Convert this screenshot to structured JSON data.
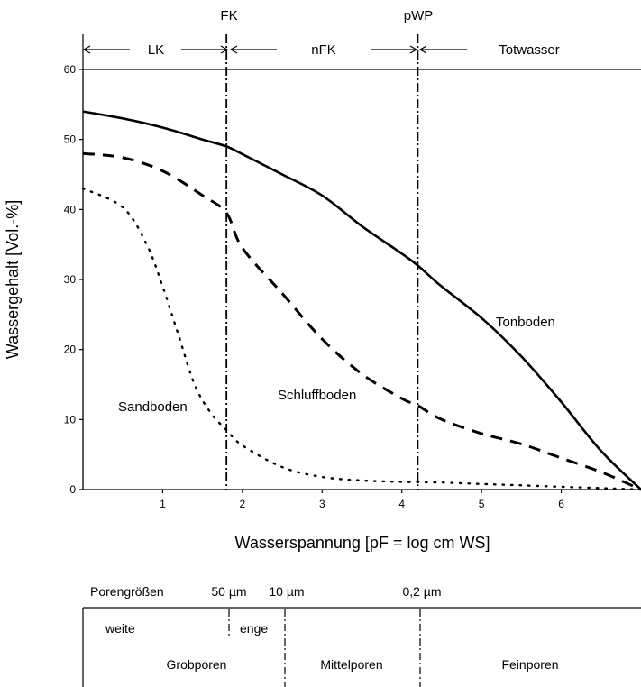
{
  "chart_data": {
    "type": "line",
    "xlabel": "Wasserspannung [pF = log cm WS]",
    "ylabel": "Wassergehalt [Vol.-%]",
    "xlim": [
      0,
      7
    ],
    "ylim": [
      0,
      60
    ],
    "x_ticks": [
      1,
      2,
      3,
      4,
      5,
      6
    ],
    "y_ticks": [
      0,
      10,
      20,
      30,
      40,
      50,
      60
    ],
    "grid": false,
    "series": [
      {
        "name": "Tonboden",
        "style": "solid",
        "x": [
          0,
          0.5,
          1,
          1.5,
          1.8,
          2,
          2.5,
          3,
          3.5,
          4,
          4.2,
          4.5,
          5,
          5.5,
          6,
          6.5,
          7
        ],
        "y": [
          54,
          53,
          51.7,
          50,
          49,
          47.9,
          45,
          42,
          37.6,
          33.7,
          32,
          29,
          24.5,
          19,
          12.5,
          5.5,
          0
        ]
      },
      {
        "name": "Schluffboden",
        "style": "dashed",
        "x": [
          0,
          0.5,
          1,
          1.5,
          1.8,
          2,
          2.5,
          3,
          3.5,
          4,
          4.2,
          4.5,
          5,
          5.5,
          6,
          6.5,
          7
        ],
        "y": [
          48,
          47.4,
          45.5,
          42,
          39.5,
          34.5,
          28,
          21.5,
          16.5,
          13,
          12,
          10,
          8,
          6.5,
          4.5,
          2.5,
          0
        ]
      },
      {
        "name": "Sandboden",
        "style": "dotted",
        "x": [
          0,
          0.5,
          0.8,
          1,
          1.2,
          1.4,
          1.6,
          1.8,
          2,
          2.5,
          3,
          3.5,
          4,
          4.5,
          5,
          5.5,
          6,
          6.5,
          7
        ],
        "y": [
          43,
          40.3,
          35,
          29,
          22,
          15,
          11,
          8.5,
          6.3,
          3.2,
          1.8,
          1.3,
          1.1,
          1,
          0.8,
          0.6,
          0.4,
          0.2,
          0
        ]
      }
    ],
    "reference_lines": [
      {
        "label": "FK",
        "x": 1.8
      },
      {
        "label": "pWP",
        "x": 4.2
      }
    ],
    "ranges": [
      {
        "label": "LK",
        "from": 0,
        "to": 1.8
      },
      {
        "label": "nFK",
        "from": 1.8,
        "to": 4.2
      },
      {
        "label": "Totwasser",
        "from": 4.2,
        "to": 7
      }
    ],
    "annotations": [
      "Tonboden",
      "Schluffboden",
      "Sandboden"
    ]
  },
  "pores": {
    "title": "Porengrößen",
    "sizes": [
      {
        "label": "50 µm",
        "x": 1.8
      },
      {
        "label": "10 µm",
        "x": 2.5
      },
      {
        "label": "0,2 µm",
        "x": 4.2
      }
    ],
    "subclasses": [
      "weite",
      "enge"
    ],
    "classes": [
      "Grobporen",
      "Mittelporen",
      "Feinporen"
    ]
  }
}
